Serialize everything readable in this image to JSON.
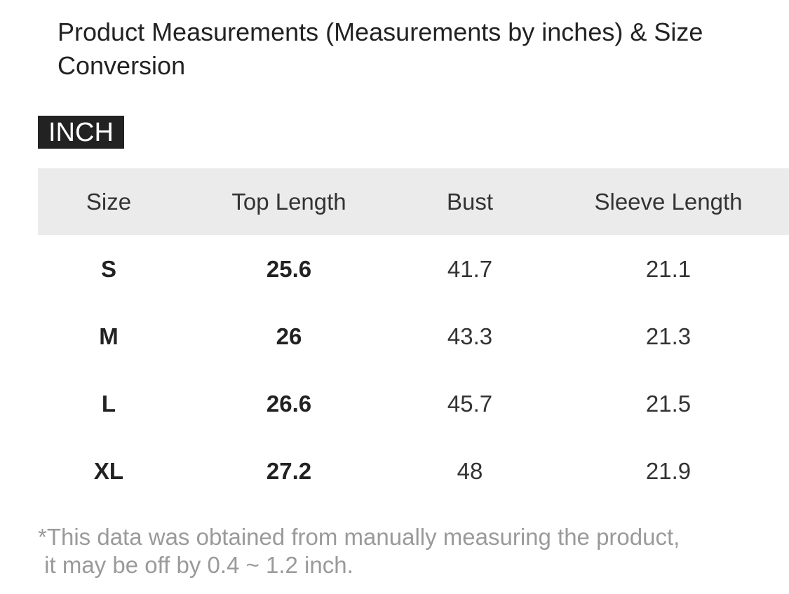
{
  "title": "Product Measurements (Measurements by inches) & Size Conversion",
  "badge": "INCH",
  "table": {
    "headers": [
      "Size",
      "Top Length",
      "Bust",
      "Sleeve Length"
    ],
    "rows": [
      [
        "S",
        "25.6",
        "41.7",
        "21.1"
      ],
      [
        "M",
        "26",
        "43.3",
        "21.3"
      ],
      [
        "L",
        "26.6",
        "45.7",
        "21.5"
      ],
      [
        "XL",
        "27.2",
        "48",
        "21.9"
      ]
    ]
  },
  "note": [
    "*This data was obtained from manually measuring the product,",
    " it may be off by 0.4 ~ 1.2 inch."
  ]
}
